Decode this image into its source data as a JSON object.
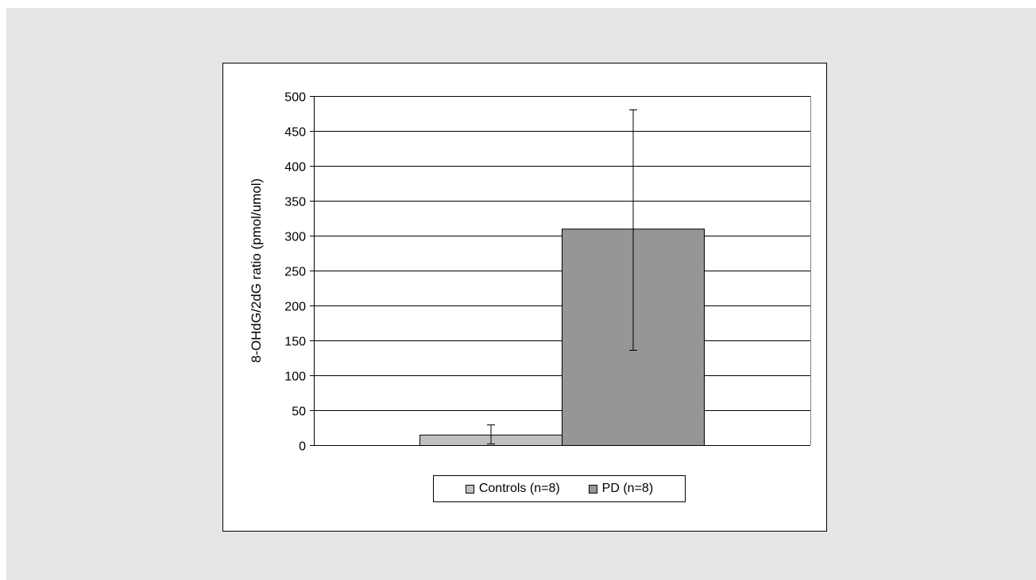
{
  "chart_data": {
    "type": "bar",
    "title": "",
    "xlabel": "",
    "ylabel": "8-OHdG/2dG ratio (pmol/umol)",
    "ylim": [
      0,
      500
    ],
    "yticks": [
      0,
      50,
      100,
      150,
      200,
      250,
      300,
      350,
      400,
      450,
      500
    ],
    "grid": true,
    "legend_position": "bottom",
    "series": [
      {
        "name": "Controls (n=8)",
        "value": 15,
        "error_low": 2,
        "error_high": 29,
        "color": "#c0c0c0"
      },
      {
        "name": "PD (n=8)",
        "value": 310,
        "error_low": 136,
        "error_high": 481,
        "color": "#969696"
      }
    ]
  }
}
